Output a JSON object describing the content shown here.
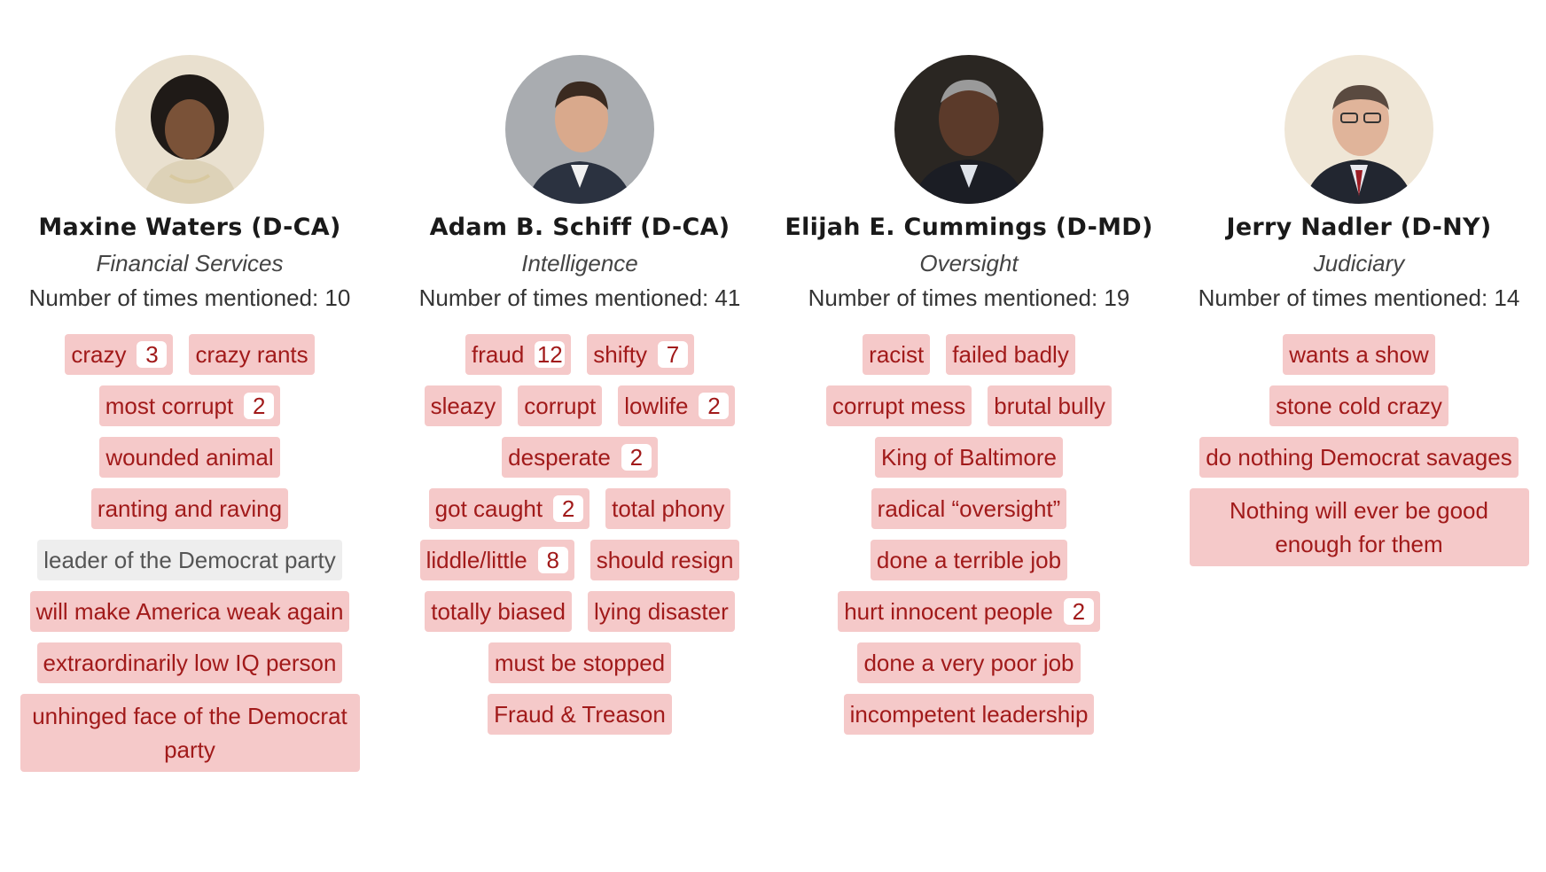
{
  "people": [
    {
      "name": "Maxine Waters (D-CA)",
      "committee": "Financial Services",
      "mentions": "Number of times mentioned: 10",
      "tag_rows": [
        [
          {
            "text": "crazy",
            "count": "3"
          },
          {
            "text": "crazy rants"
          }
        ],
        [
          {
            "text": "most corrupt",
            "count": "2"
          }
        ],
        [
          {
            "text": "wounded animal"
          }
        ],
        [
          {
            "text": "ranting and raving"
          }
        ],
        [
          {
            "text": "leader of the Democrat party",
            "style": "gray"
          }
        ],
        [
          {
            "text": "will make America weak again"
          }
        ],
        [
          {
            "text": "extraordinarily low IQ person"
          }
        ],
        [
          {
            "text": "unhinged face of the Democrat party",
            "style": "wrap"
          }
        ]
      ]
    },
    {
      "name": "Adam B. Schiff (D-CA)",
      "committee": "Intelligence",
      "mentions": "Number of times mentioned: 41",
      "tag_rows": [
        [
          {
            "text": "fraud",
            "count": "12"
          },
          {
            "text": "shifty",
            "count": "7"
          }
        ],
        [
          {
            "text": "sleazy"
          },
          {
            "text": "corrupt"
          },
          {
            "text": "lowlife",
            "count": "2"
          }
        ],
        [
          {
            "text": "desperate",
            "count": "2"
          }
        ],
        [
          {
            "text": "got caught",
            "count": "2"
          },
          {
            "text": "total phony"
          }
        ],
        [
          {
            "text": "liddle/little",
            "count": "8"
          },
          {
            "text": "should resign"
          }
        ],
        [
          {
            "text": "totally biased"
          },
          {
            "text": "lying disaster"
          }
        ],
        [
          {
            "text": "must be stopped"
          }
        ],
        [
          {
            "text": "Fraud & Treason"
          }
        ]
      ]
    },
    {
      "name": "Elijah E. Cummings (D-MD)",
      "committee": "Oversight",
      "mentions": "Number of times mentioned: 19",
      "tag_rows": [
        [
          {
            "text": "racist"
          },
          {
            "text": "failed badly"
          }
        ],
        [
          {
            "text": "corrupt mess"
          },
          {
            "text": "brutal bully"
          }
        ],
        [
          {
            "text": "King of Baltimore"
          }
        ],
        [
          {
            "text": "radical “oversight”"
          }
        ],
        [
          {
            "text": "done a terrible job"
          }
        ],
        [
          {
            "text": "hurt innocent people",
            "count": "2"
          }
        ],
        [
          {
            "text": "done a very poor job"
          }
        ],
        [
          {
            "text": "incompetent leadership"
          }
        ]
      ]
    },
    {
      "name": "Jerry Nadler (D-NY)",
      "committee": "Judiciary",
      "mentions": "Number of times mentioned: 14",
      "tag_rows": [
        [
          {
            "text": "wants a show"
          }
        ],
        [
          {
            "text": "stone cold crazy"
          }
        ],
        [
          {
            "text": "do nothing Democrat savages"
          }
        ],
        [
          {
            "text": "Nothing will ever be good enough for them",
            "style": "wrap"
          }
        ]
      ]
    }
  ]
}
